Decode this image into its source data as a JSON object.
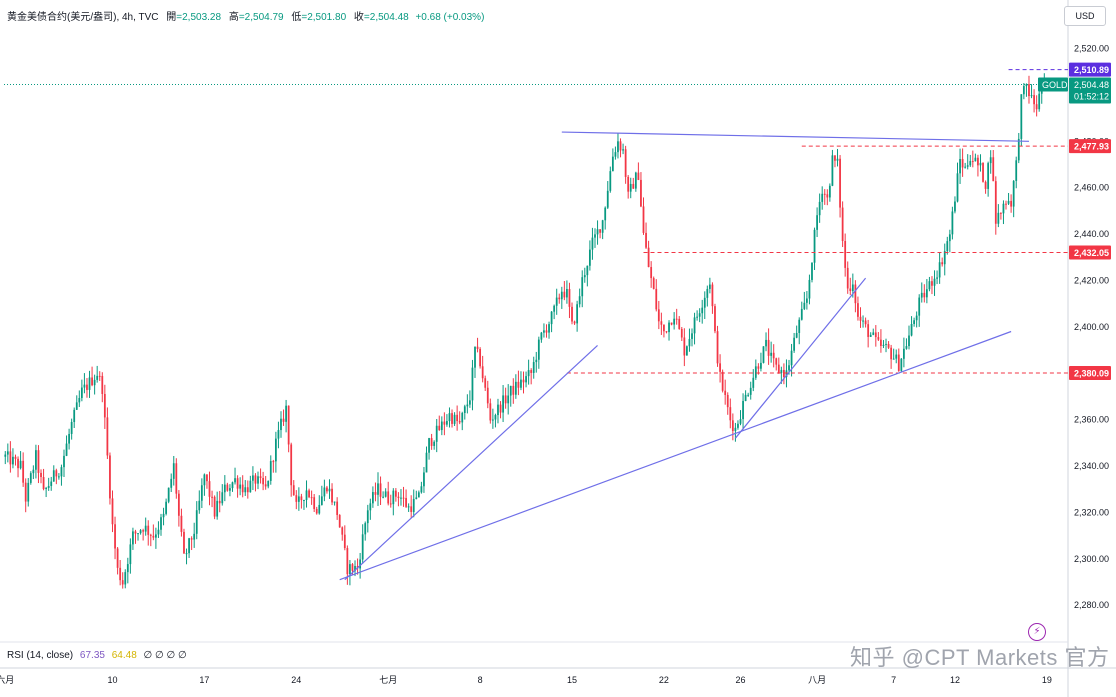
{
  "header": {
    "symbol": "黄金美债合约(美元/盎司), 4h, TVC",
    "open_label": "開",
    "open_value": "=2,503.28",
    "high_label": "高",
    "high_value": "=2,504.79",
    "low_label": "低",
    "low_value": "=2,501.80",
    "close_label": "收",
    "close_value": "=2,504.48",
    "change": "+0.68 (+0.03%)"
  },
  "currency_button": "USD",
  "rsi": {
    "label": "RSI (14, close)",
    "value1": "67.35",
    "value2": "64.48",
    "extras": "∅ ∅ ∅ ∅"
  },
  "watermark": "知乎 @CPT Markets 官方",
  "colors": {
    "up": "#089981",
    "down": "#f23645",
    "trend": "#6f6fe8",
    "level": "#f23645",
    "purple": "#5b2ee0"
  },
  "chart_data": {
    "type": "candlestick",
    "y_ticks": [
      2280,
      2300,
      2320,
      2340,
      2360,
      2380,
      2400,
      2420,
      2440,
      2460,
      2480,
      2500,
      2520
    ],
    "y_tick_labels": [
      "2,280.00",
      "2,300.00",
      "2,320.00",
      "2,340.00",
      "2,360.00",
      "2,380.00",
      "2,400.00",
      "2,420.00",
      "2,440.00",
      "2,460.00",
      "2,480.00",
      "2,500.00",
      "2,520.00"
    ],
    "ylim": [
      2268,
      2528
    ],
    "x_labels": [
      {
        "bar": 0,
        "label": "六月"
      },
      {
        "bar": 42,
        "label": "10"
      },
      {
        "bar": 78,
        "label": "17"
      },
      {
        "bar": 114,
        "label": "24"
      },
      {
        "bar": 150,
        "label": "七月"
      },
      {
        "bar": 186,
        "label": "8"
      },
      {
        "bar": 222,
        "label": "15"
      },
      {
        "bar": 258,
        "label": "22"
      },
      {
        "bar": 288,
        "label": "26"
      },
      {
        "bar": 318,
        "label": "八月"
      },
      {
        "bar": 348,
        "label": "7"
      },
      {
        "bar": 372,
        "label": "12"
      },
      {
        "bar": 408,
        "label": "19"
      }
    ],
    "price_levels": [
      {
        "value": 2510.89,
        "label": "2,510.89",
        "style": "purple"
      },
      {
        "value": 2477.93,
        "label": "2,477.93",
        "style": "red"
      },
      {
        "value": 2432.05,
        "label": "2,432.05",
        "style": "red"
      },
      {
        "value": 2380.09,
        "label": "2,380.09",
        "style": "red"
      }
    ],
    "last_price": {
      "value": 2504.48,
      "label": "2,504.48",
      "countdown": "01:52:12",
      "symbol": "GOLD"
    },
    "trend_lines": [
      {
        "from": [
          131,
          2291
        ],
        "to": [
          394,
          2398
        ]
      },
      {
        "from": [
          133,
          2291
        ],
        "to": [
          232,
          2392
        ]
      },
      {
        "from": [
          286,
          2352
        ],
        "to": [
          337,
          2421
        ]
      },
      {
        "from": [
          218,
          2484
        ],
        "to": [
          401,
          2480
        ]
      }
    ],
    "horizontal_segments": [
      {
        "value": 2380.09,
        "from_bar": 220
      },
      {
        "value": 2432.05,
        "from_bar": 250
      },
      {
        "value": 2477.93,
        "from_bar": 312
      },
      {
        "value": 2510.89,
        "from_bar": 393
      }
    ],
    "waypoints": [
      [
        0,
        2344
      ],
      [
        6,
        2340
      ],
      [
        8,
        2326
      ],
      [
        12,
        2344
      ],
      [
        15,
        2328
      ],
      [
        18,
        2334
      ],
      [
        22,
        2340
      ],
      [
        26,
        2358
      ],
      [
        30,
        2372
      ],
      [
        36,
        2380
      ],
      [
        38,
        2374
      ],
      [
        42,
        2314
      ],
      [
        44,
        2295
      ],
      [
        46,
        2290
      ],
      [
        50,
        2310
      ],
      [
        54,
        2314
      ],
      [
        58,
        2310
      ],
      [
        62,
        2318
      ],
      [
        66,
        2340
      ],
      [
        68,
        2318
      ],
      [
        70,
        2300
      ],
      [
        74,
        2312
      ],
      [
        78,
        2336
      ],
      [
        82,
        2320
      ],
      [
        86,
        2330
      ],
      [
        90,
        2334
      ],
      [
        94,
        2330
      ],
      [
        98,
        2334
      ],
      [
        102,
        2330
      ],
      [
        106,
        2350
      ],
      [
        110,
        2365
      ],
      [
        112,
        2334
      ],
      [
        114,
        2322
      ],
      [
        118,
        2330
      ],
      [
        122,
        2322
      ],
      [
        126,
        2332
      ],
      [
        130,
        2320
      ],
      [
        134,
        2296
      ],
      [
        138,
        2296
      ],
      [
        142,
        2322
      ],
      [
        146,
        2330
      ],
      [
        150,
        2326
      ],
      [
        154,
        2328
      ],
      [
        158,
        2322
      ],
      [
        162,
        2326
      ],
      [
        166,
        2350
      ],
      [
        170,
        2356
      ],
      [
        174,
        2362
      ],
      [
        178,
        2358
      ],
      [
        182,
        2370
      ],
      [
        184,
        2390
      ],
      [
        186,
        2385
      ],
      [
        190,
        2360
      ],
      [
        194,
        2366
      ],
      [
        198,
        2372
      ],
      [
        202,
        2376
      ],
      [
        206,
        2380
      ],
      [
        210,
        2396
      ],
      [
        214,
        2404
      ],
      [
        218,
        2416
      ],
      [
        220,
        2414
      ],
      [
        222,
        2400
      ],
      [
        224,
        2408
      ],
      [
        226,
        2420
      ],
      [
        230,
        2436
      ],
      [
        234,
        2446
      ],
      [
        236,
        2460
      ],
      [
        238,
        2474
      ],
      [
        240,
        2480
      ],
      [
        242,
        2476
      ],
      [
        244,
        2456
      ],
      [
        246,
        2462
      ],
      [
        248,
        2466
      ],
      [
        250,
        2440
      ],
      [
        252,
        2426
      ],
      [
        254,
        2415
      ],
      [
        256,
        2402
      ],
      [
        258,
        2398
      ],
      [
        262,
        2406
      ],
      [
        266,
        2390
      ],
      [
        270,
        2402
      ],
      [
        274,
        2414
      ],
      [
        276,
        2420
      ],
      [
        278,
        2396
      ],
      [
        280,
        2378
      ],
      [
        284,
        2360
      ],
      [
        286,
        2356
      ],
      [
        290,
        2370
      ],
      [
        294,
        2382
      ],
      [
        298,
        2392
      ],
      [
        300,
        2386
      ],
      [
        302,
        2382
      ],
      [
        306,
        2380
      ],
      [
        310,
        2398
      ],
      [
        314,
        2412
      ],
      [
        316,
        2430
      ],
      [
        318,
        2448
      ],
      [
        320,
        2460
      ],
      [
        322,
        2455
      ],
      [
        324,
        2472
      ],
      [
        326,
        2470
      ],
      [
        328,
        2436
      ],
      [
        330,
        2416
      ],
      [
        332,
        2420
      ],
      [
        334,
        2404
      ],
      [
        338,
        2398
      ],
      [
        342,
        2392
      ],
      [
        346,
        2390
      ],
      [
        350,
        2384
      ],
      [
        354,
        2396
      ],
      [
        358,
        2410
      ],
      [
        362,
        2418
      ],
      [
        366,
        2426
      ],
      [
        370,
        2440
      ],
      [
        374,
        2472
      ],
      [
        376,
        2468
      ],
      [
        378,
        2474
      ],
      [
        382,
        2468
      ],
      [
        384,
        2462
      ],
      [
        386,
        2476
      ],
      [
        388,
        2446
      ],
      [
        390,
        2450
      ],
      [
        392,
        2455
      ],
      [
        394,
        2454
      ],
      [
        396,
        2470
      ],
      [
        398,
        2498
      ],
      [
        400,
        2504
      ],
      [
        402,
        2498
      ],
      [
        404,
        2495
      ],
      [
        406,
        2503
      ],
      [
        408,
        2504
      ]
    ]
  }
}
